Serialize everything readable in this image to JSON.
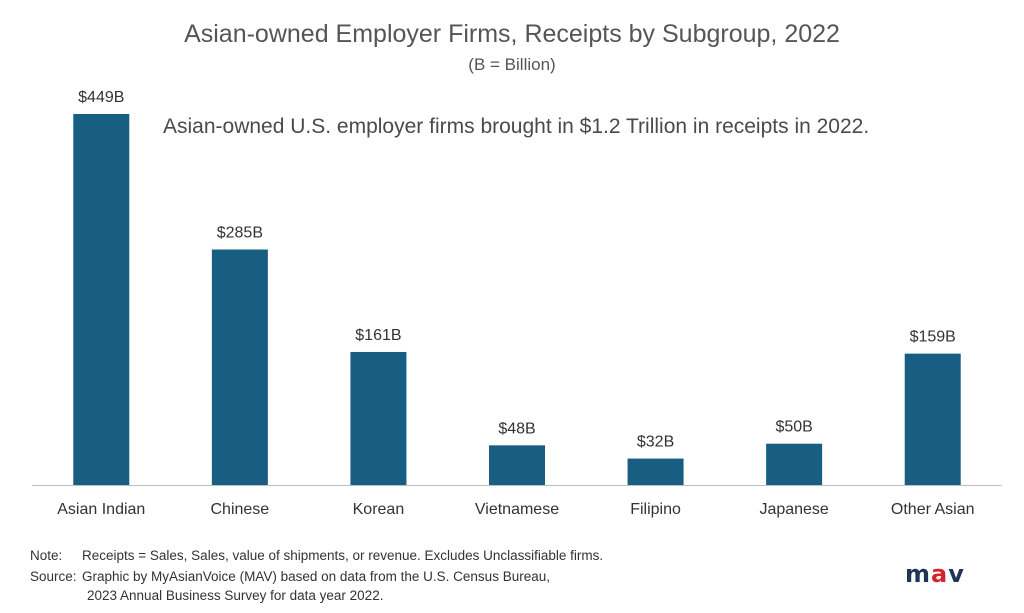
{
  "chart_data": {
    "type": "bar",
    "title": "Asian-owned Employer Firms, Receipts by Subgroup, 2022",
    "subtitle": "(B = Billion)",
    "annotation": "Asian-owned U.S. employer firms brought in $1.2 Trillion in receipts in 2022.",
    "categories": [
      "Asian Indian",
      "Chinese",
      "Korean",
      "Vietnamese",
      "Filipino",
      "Japanese",
      "Other Asian"
    ],
    "values": [
      449,
      285,
      161,
      48,
      32,
      50,
      159
    ],
    "value_labels": [
      "$449B",
      "$285B",
      "$161B",
      "$48B",
      "$32B",
      "$50B",
      "$159B"
    ],
    "ylim": [
      0,
      449
    ],
    "xlabel": "",
    "ylabel": "",
    "grid": false,
    "bar_color": "#175e82"
  },
  "notes": {
    "note_tag": "Note:",
    "note_text": "Receipts = Sales, Sales, value of shipments, or revenue. Excludes Unclassifiable firms.",
    "source_tag": "Source:",
    "source_line1": "Graphic by MyAsianVoice (MAV) based on data from the U.S. Census Bureau,",
    "source_line2": "2023 Annual Business Survey for data year 2022."
  },
  "logo": {
    "m": "m",
    "a": "a",
    "v": "v"
  }
}
